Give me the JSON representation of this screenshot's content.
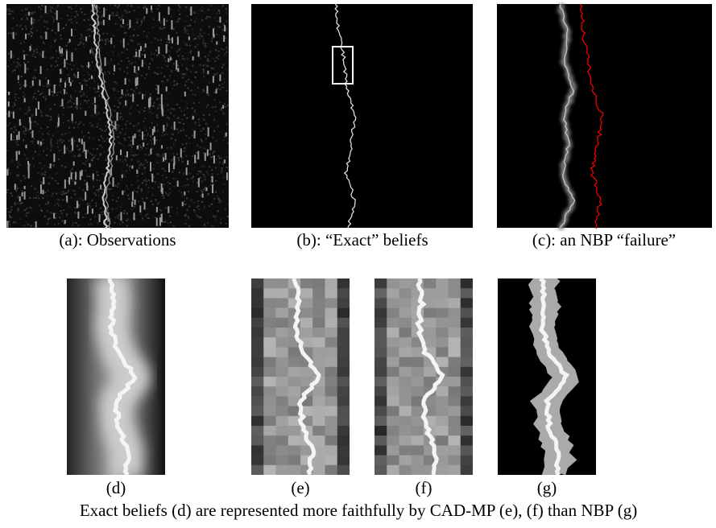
{
  "panels": [
    {
      "caption": "(a): Observations"
    },
    {
      "caption": "(b): “Exact” beliefs"
    },
    {
      "caption": "(c): an NBP “failure”"
    }
  ],
  "subpanels": [
    {
      "label": "(d)"
    },
    {
      "label": "(e)"
    },
    {
      "label": "(f)"
    },
    {
      "label": "(g)"
    }
  ],
  "caption": "Exact beliefs (d) are represented more faithfully by CAD-MP (e), (f) than NBP (g)"
}
